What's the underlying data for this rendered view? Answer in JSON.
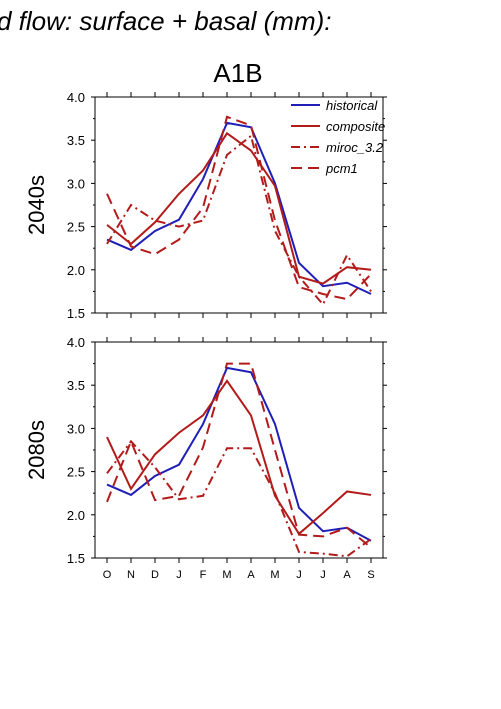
{
  "header_text": "d flow: surface + basal (mm):",
  "chart_data": {
    "type": "line",
    "title": "A1B",
    "categories": [
      "O",
      "N",
      "D",
      "J",
      "F",
      "M",
      "A",
      "M",
      "J",
      "J",
      "A",
      "S"
    ],
    "ylim": [
      1.5,
      4.0
    ],
    "yticks": [
      "1.5",
      "2.0",
      "2.5",
      "3.0",
      "3.5",
      "4.0"
    ],
    "legend_placement": "top-right",
    "series_styles": {
      "historical": {
        "color": "#1f1fb8",
        "dash": ""
      },
      "composite": {
        "color": "#b31b1b",
        "dash": ""
      },
      "miroc_3.2": {
        "color": "#b31b1b",
        "dash": "9,4,2,4"
      },
      "pcm1": {
        "color": "#b31b1b",
        "dash": "11,6"
      }
    },
    "panels": [
      {
        "row_label": "2040s",
        "series": [
          {
            "name": "historical",
            "values": [
              2.35,
              2.23,
              2.45,
              2.58,
              3.05,
              3.7,
              3.65,
              3.0,
              2.08,
              1.81,
              1.85,
              1.72
            ]
          },
          {
            "name": "composite",
            "values": [
              2.52,
              2.3,
              2.55,
              2.88,
              3.15,
              3.58,
              3.38,
              2.97,
              1.92,
              1.84,
              2.03,
              2.0
            ]
          },
          {
            "name": "miroc_3.2",
            "values": [
              2.3,
              2.75,
              2.57,
              2.5,
              2.57,
              3.33,
              3.55,
              2.45,
              1.92,
              1.6,
              2.17,
              1.75
            ]
          },
          {
            "name": "pcm1",
            "values": [
              2.88,
              2.27,
              2.18,
              2.35,
              2.72,
              3.77,
              3.67,
              2.57,
              1.8,
              1.72,
              1.66,
              1.95
            ]
          }
        ]
      },
      {
        "row_label": "2080s",
        "series": [
          {
            "name": "historical",
            "values": [
              2.35,
              2.23,
              2.45,
              2.58,
              3.05,
              3.7,
              3.65,
              3.05,
              2.08,
              1.81,
              1.85,
              1.7
            ]
          },
          {
            "name": "composite",
            "values": [
              2.9,
              2.3,
              2.7,
              2.95,
              3.15,
              3.55,
              3.15,
              2.22,
              1.78,
              2.02,
              2.27,
              2.23
            ]
          },
          {
            "name": "miroc_3.2",
            "values": [
              2.48,
              2.85,
              2.55,
              2.18,
              2.22,
              2.77,
              2.77,
              2.25,
              1.57,
              1.55,
              1.52,
              1.72
            ]
          },
          {
            "name": "pcm1",
            "values": [
              2.15,
              2.85,
              2.17,
              2.22,
              2.78,
              3.75,
              3.75,
              2.75,
              1.77,
              1.75,
              1.85,
              1.62
            ]
          }
        ]
      }
    ]
  }
}
